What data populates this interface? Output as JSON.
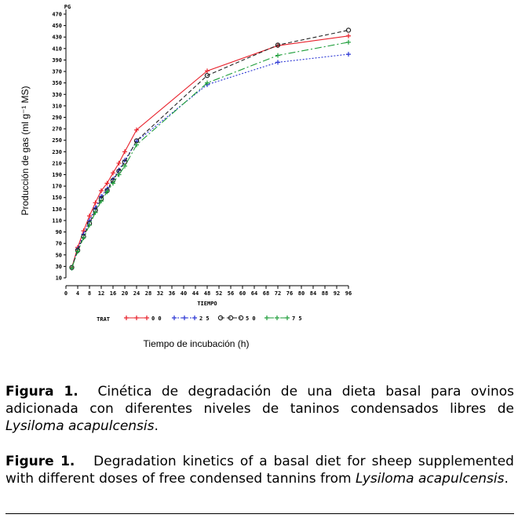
{
  "chart_data": {
    "type": "line",
    "y_unit_label": "PG",
    "ylabel": "Producción  de gas (ml g⁻¹ MS)",
    "x_tick_header": "TIEMPO",
    "xlabel": "Tiempo de incubación (h)",
    "legend_title": "TRAT",
    "x_ticks": [
      0,
      4,
      8,
      12,
      16,
      20,
      24,
      28,
      32,
      36,
      40,
      44,
      48,
      52,
      56,
      60,
      64,
      68,
      72,
      76,
      80,
      84,
      88,
      92,
      96
    ],
    "y_ticks": [
      10,
      30,
      50,
      70,
      90,
      110,
      130,
      150,
      170,
      190,
      210,
      230,
      250,
      270,
      290,
      310,
      330,
      350,
      370,
      390,
      410,
      430,
      450,
      470
    ],
    "xlim": [
      0,
      96
    ],
    "ylim": [
      10,
      470
    ],
    "series": [
      {
        "name": "0 0",
        "color": "#e8202a",
        "marker": "plus",
        "dash": "",
        "x": [
          2,
          4,
          6,
          8,
          10,
          12,
          14,
          16,
          18,
          20,
          24,
          48,
          72,
          96
        ],
        "y": [
          28,
          63,
          92,
          118,
          141,
          162,
          175,
          193,
          210,
          230,
          268,
          371,
          415,
          432
        ]
      },
      {
        "name": "2 5",
        "color": "#2a35d4",
        "marker": "plus",
        "dash": "2,2",
        "x": [
          2,
          4,
          6,
          8,
          10,
          12,
          14,
          16,
          18,
          20,
          24,
          48,
          72,
          96
        ],
        "y": [
          27,
          60,
          86,
          110,
          132,
          152,
          165,
          182,
          198,
          215,
          248,
          347,
          386,
          400
        ]
      },
      {
        "name": "5 0",
        "color": "#222222",
        "marker": "circle",
        "dash": "5,3",
        "x": [
          2,
          4,
          6,
          8,
          10,
          12,
          14,
          16,
          18,
          20,
          24,
          48,
          72,
          96
        ],
        "y": [
          28,
          58,
          82,
          105,
          128,
          148,
          162,
          180,
          196,
          212,
          249,
          363,
          416,
          442
        ]
      },
      {
        "name": "7 5",
        "color": "#1e9e3a",
        "marker": "plus",
        "dash": "9,3,2,3",
        "x": [
          2,
          4,
          6,
          8,
          10,
          12,
          14,
          16,
          18,
          20,
          24,
          48,
          72,
          96
        ],
        "y": [
          27,
          56,
          80,
          102,
          124,
          144,
          160,
          175,
          190,
          205,
          242,
          350,
          398,
          421
        ]
      }
    ]
  },
  "caption_es": {
    "label": "Figura 1.",
    "text": "Cinética de degradación de una dieta basal para ovinos adicionada con diferentes niveles de taninos condensados libres de",
    "species": "Lysiloma acapulcensis",
    "end": "."
  },
  "caption_en": {
    "label": "Figure 1.",
    "text": "Degradation kinetics of a basal diet for sheep supplemented with different doses of free condensed tannins from",
    "species": "Lysiloma acapulcensis",
    "end": "."
  }
}
